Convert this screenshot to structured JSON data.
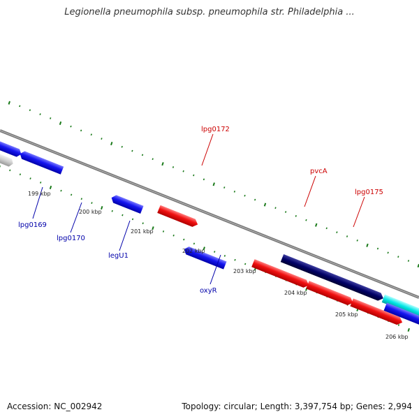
{
  "header": {
    "title": "Legionella pneumophila subsp. pneumophila str. Philadelphia ..."
  },
  "footer": {
    "accession": "Accession: NC_002942",
    "summary": "Topology: circular; Length: 3,397,754 bp; Genes: 2,994"
  },
  "map": {
    "kbp_labels": [
      "199 kbp",
      "200 kbp",
      "201 kbp",
      "202 kbp",
      "203 kbp",
      "204 kbp",
      "205 kbp",
      "206 kbp"
    ],
    "genes": [
      "lpg0169",
      "lpg0170",
      "legU1",
      "oxyR",
      "lpg0172",
      "pvcA",
      "lpg0175"
    ],
    "colors": {
      "forward": "#ee0000",
      "reverse": "#0000ee",
      "dark": "#000066",
      "cyan": "#00e5e5",
      "tick": "#1a7a1a",
      "reverse_label": "#0000aa",
      "forward_label": "#cc0000"
    }
  }
}
